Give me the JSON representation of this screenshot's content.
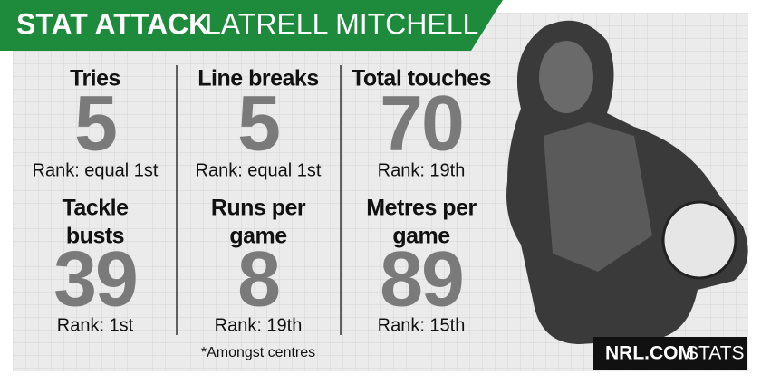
{
  "header": {
    "title_bold": "STAT ATTACK",
    "title_light": "LATRELL MITCHELL"
  },
  "stats": [
    {
      "label": [
        "Tries"
      ],
      "value": 5,
      "rank": "Rank: equal 1st"
    },
    {
      "label": [
        "Line breaks"
      ],
      "value": 5,
      "rank": "Rank: equal 1st"
    },
    {
      "label": [
        "Total touches"
      ],
      "value": 70,
      "rank": "Rank: 19th"
    },
    {
      "label": [
        "Tackle",
        "busts"
      ],
      "value": 39,
      "rank": "Rank: 1st"
    },
    {
      "label": [
        "Runs per",
        "game"
      ],
      "value": 8,
      "rank": "Rank: 19th"
    },
    {
      "label": [
        "Metres per",
        "game"
      ],
      "value": 89,
      "rank": "Rank: 15th"
    }
  ],
  "footnote": "*Amongst centres",
  "brand": {
    "name": "NRL.COM",
    "suffix": "STATS"
  }
}
